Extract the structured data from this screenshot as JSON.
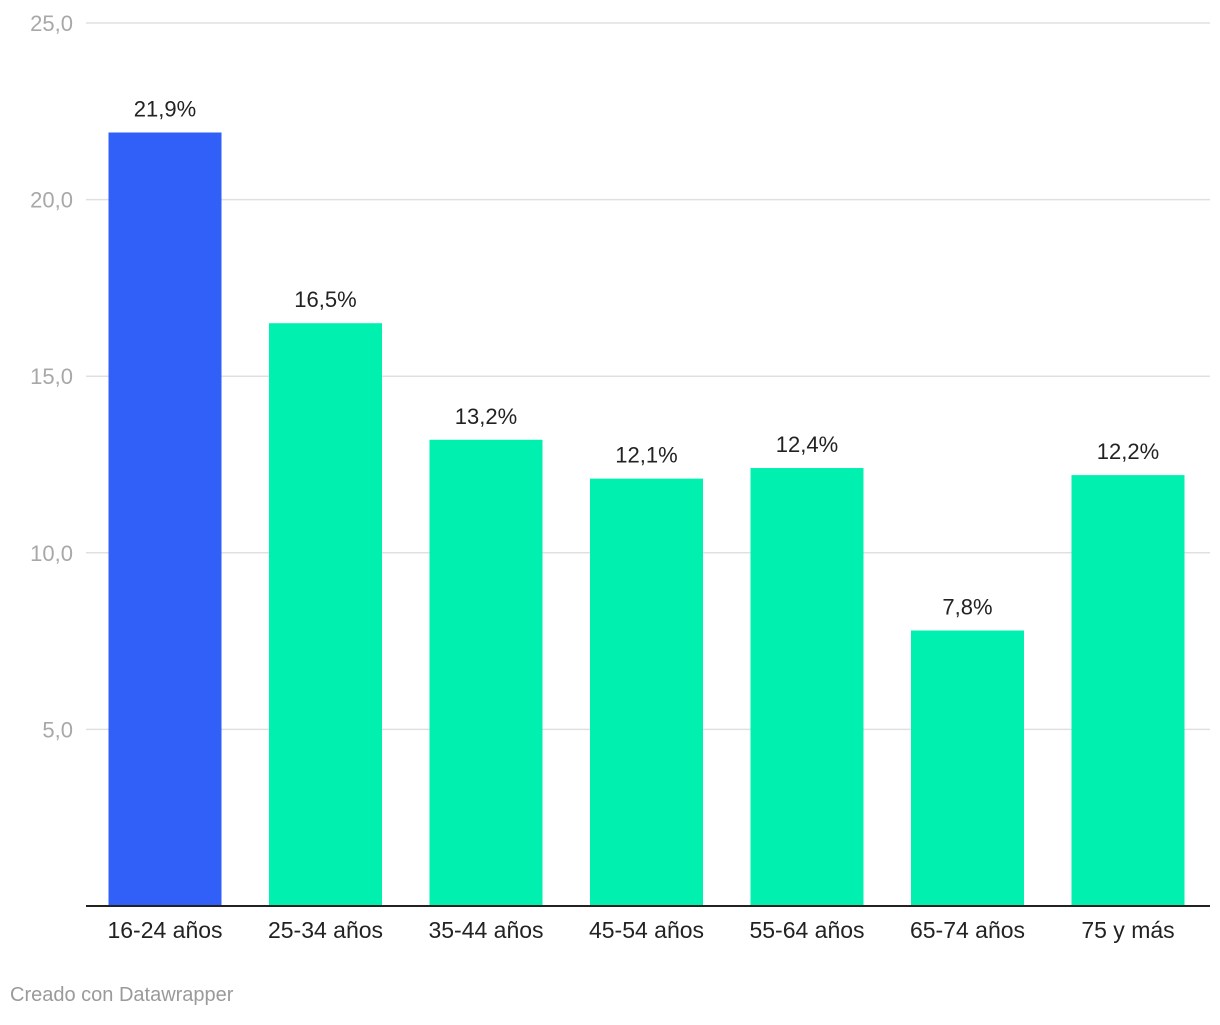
{
  "chart_data": {
    "type": "bar",
    "categories": [
      "16-24 años",
      "25-34 años",
      "35-44 años",
      "45-54 años",
      "55-64 años",
      "65-74 años",
      "75 y más"
    ],
    "values": [
      21.9,
      16.5,
      13.2,
      12.1,
      12.4,
      7.8,
      12.2
    ],
    "value_labels": [
      "21,9%",
      "16,5%",
      "13,2%",
      "12,1%",
      "12,4%",
      "7,8%",
      "12,2%"
    ],
    "ylim": [
      0,
      25
    ],
    "yticks": [
      5,
      10,
      15,
      20,
      25
    ],
    "ytick_labels": [
      "5,0",
      "10,0",
      "15,0",
      "20,0",
      "25,0"
    ],
    "highlight_index": 0,
    "grid": true,
    "title": "",
    "xlabel": "",
    "ylabel": "",
    "colors": {
      "highlight": "#3060f8",
      "default": "#00f0b0",
      "grid": "#e0e0e0",
      "axis": "#222222",
      "tick_text": "#a8a8a8"
    }
  },
  "footer": {
    "credit": "Creado con Datawrapper"
  }
}
